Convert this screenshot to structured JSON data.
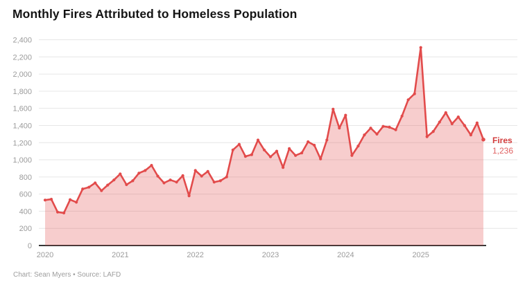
{
  "chart_data": {
    "type": "area",
    "title": "Monthly Fires Attributed to Homeless Population",
    "x_start": "2020-01",
    "x_end": "2025-11",
    "frequency": "monthly",
    "x_tick_labels": [
      "2020",
      "2021",
      "2022",
      "2023",
      "2024",
      "2025"
    ],
    "y_ticks": [
      0,
      200,
      400,
      600,
      800,
      1000,
      1200,
      1400,
      1600,
      1800,
      2000,
      2200,
      2400
    ],
    "ylim": [
      0,
      2400
    ],
    "grid": "horizontal",
    "values": [
      530,
      540,
      390,
      380,
      535,
      505,
      660,
      680,
      730,
      640,
      705,
      765,
      835,
      710,
      755,
      845,
      875,
      935,
      810,
      730,
      765,
      740,
      815,
      580,
      875,
      810,
      865,
      740,
      755,
      800,
      1115,
      1180,
      1040,
      1060,
      1230,
      1115,
      1035,
      1100,
      910,
      1130,
      1050,
      1080,
      1210,
      1170,
      1010,
      1230,
      1590,
      1370,
      1520,
      1050,
      1160,
      1290,
      1370,
      1300,
      1390,
      1380,
      1350,
      1510,
      1700,
      1770,
      2310,
      1270,
      1330,
      1440,
      1550,
      1420,
      1500,
      1400,
      1290,
      1430,
      1236
    ],
    "end_label": {
      "series": "Fires",
      "value_text": "1,236",
      "value": 1236
    },
    "style": {
      "line_color": "#e24b4b",
      "fill_color": "rgba(226,75,75,0.28)",
      "end_label_color": "#d23b3b",
      "end_value_color": "#e06262",
      "grid_color": "#e6e6e6",
      "axis_color": "#1a1a1a",
      "tick_color": "#9b9b9b"
    }
  },
  "footer": {
    "text": "Chart: Sean Myers • Source: LAFD"
  }
}
